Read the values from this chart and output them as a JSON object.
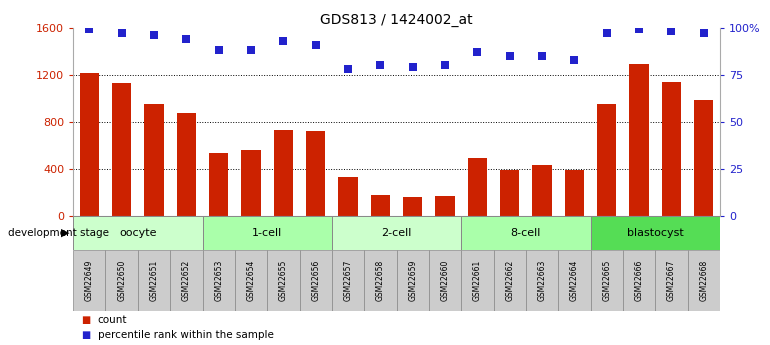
{
  "title": "GDS813 / 1424002_at",
  "samples": [
    "GSM22649",
    "GSM22650",
    "GSM22651",
    "GSM22652",
    "GSM22653",
    "GSM22654",
    "GSM22655",
    "GSM22656",
    "GSM22657",
    "GSM22658",
    "GSM22659",
    "GSM22660",
    "GSM22661",
    "GSM22662",
    "GSM22663",
    "GSM22664",
    "GSM22665",
    "GSM22666",
    "GSM22667",
    "GSM22668"
  ],
  "counts": [
    1210,
    1130,
    950,
    870,
    530,
    560,
    730,
    720,
    330,
    175,
    155,
    170,
    490,
    390,
    430,
    390,
    950,
    1290,
    1140,
    980
  ],
  "percentiles": [
    99,
    97,
    96,
    94,
    88,
    88,
    93,
    91,
    78,
    80,
    79,
    80,
    87,
    85,
    85,
    83,
    97,
    99,
    98,
    97
  ],
  "groups": [
    {
      "label": "oocyte",
      "start": 0,
      "end": 3,
      "color": "#ccffcc"
    },
    {
      "label": "1-cell",
      "start": 4,
      "end": 7,
      "color": "#aaffaa"
    },
    {
      "label": "2-cell",
      "start": 8,
      "end": 11,
      "color": "#ccffcc"
    },
    {
      "label": "8-cell",
      "start": 12,
      "end": 15,
      "color": "#aaffaa"
    },
    {
      "label": "blastocyst",
      "start": 16,
      "end": 19,
      "color": "#55dd55"
    }
  ],
  "bar_color": "#cc2200",
  "dot_color": "#2222cc",
  "ylim_left": [
    0,
    1600
  ],
  "ylim_right": [
    0,
    100
  ],
  "yticks_left": [
    0,
    400,
    800,
    1200,
    1600
  ],
  "yticks_right": [
    0,
    25,
    50,
    75,
    100
  ],
  "ytick_labels_right": [
    "0",
    "25",
    "50",
    "75",
    "100%"
  ],
  "bar_width": 0.6,
  "dot_size": 30,
  "dot_marker": "s",
  "title_fontsize": 10,
  "sample_bg_color": "#cccccc",
  "legend_count_color": "#cc2200",
  "legend_dot_color": "#2222cc",
  "dev_stage_label": "development stage",
  "legend_count_label": "count",
  "legend_percentile_label": "percentile rank within the sample"
}
